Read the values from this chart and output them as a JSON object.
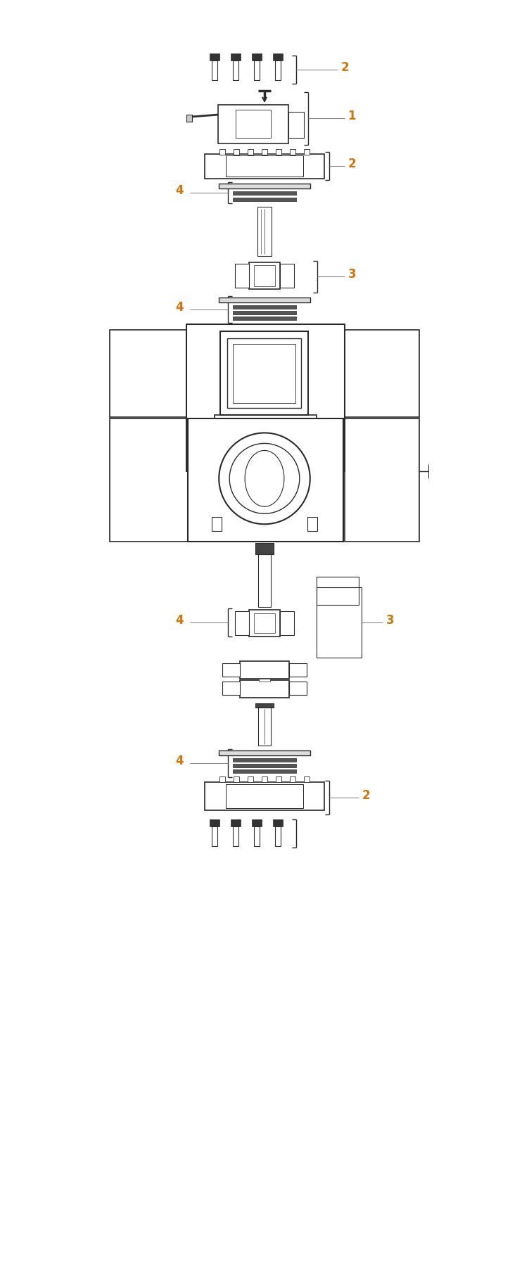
{
  "bg_color": "#ffffff",
  "line_color": "#2a2a2a",
  "label_color": "#d4730a",
  "label_line_color": "#888888",
  "fig_width": 7.52,
  "fig_height": 18.0
}
